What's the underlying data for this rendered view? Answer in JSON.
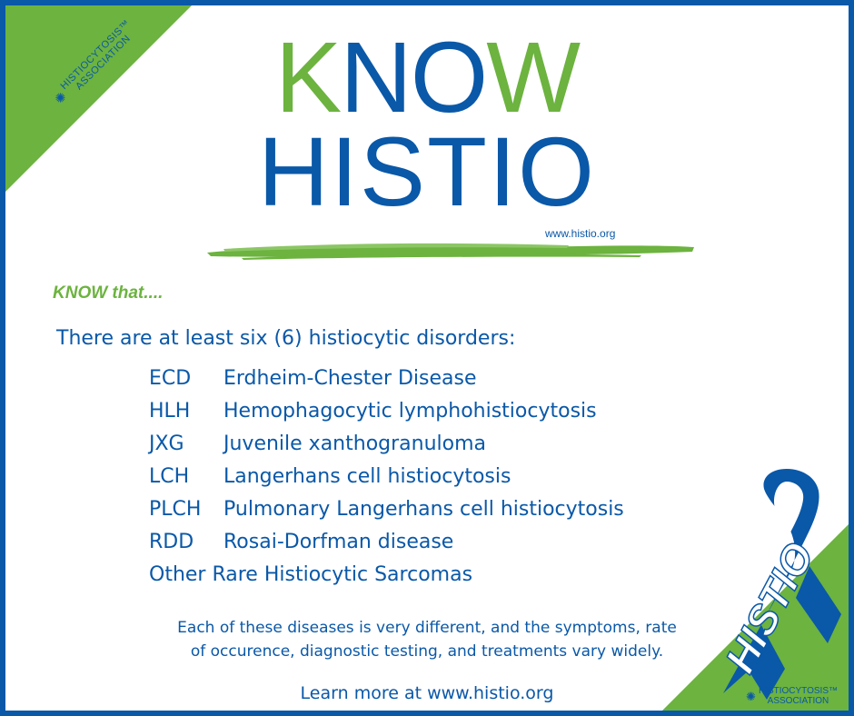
{
  "logo_top_left": {
    "line1": "HISTIOCYTOSIS™",
    "line2": "ASSOCIATION"
  },
  "logo_bottom_right": {
    "line1": "HISTIOCYTOSIS™",
    "line2": "ASSOCIATION"
  },
  "headline": {
    "know_k": "K",
    "know_no": "NO",
    "know_w": "W",
    "histio": "HISTIO"
  },
  "top_url": "www.histio.org",
  "know_that": "KNOW that....",
  "intro": "There are at least six (6) histiocytic disorders:",
  "disorders": [
    {
      "abbr": "ECD",
      "name": "Erdheim-Chester Disease"
    },
    {
      "abbr": "HLH",
      "name": "Hemophagocytic lymphohistiocytosis"
    },
    {
      "abbr": "JXG",
      "name": "Juvenile xanthogranuloma"
    },
    {
      "abbr": "LCH",
      "name": "Langerhans cell histiocytosis"
    },
    {
      "abbr": "PLCH",
      "name": "Pulmonary Langerhans cell histiocytosis"
    },
    {
      "abbr": "RDD",
      "name": "Rosai-Dorfman disease"
    }
  ],
  "other": "Other Rare Histiocytic Sarcomas",
  "description": {
    "line1": "Each of these diseases is very different, and the symptoms, rate",
    "line2": "of occurence, diagnostic testing, and treatments vary widely."
  },
  "learn_more": "Learn more at www.histio.org",
  "ribbon_text": "HISTIO",
  "colors": {
    "blue": "#0a58a8",
    "green": "#6cb33f"
  },
  "icons": {
    "logo": "sunburst-icon",
    "ribbon": "awareness-ribbon-icon"
  }
}
